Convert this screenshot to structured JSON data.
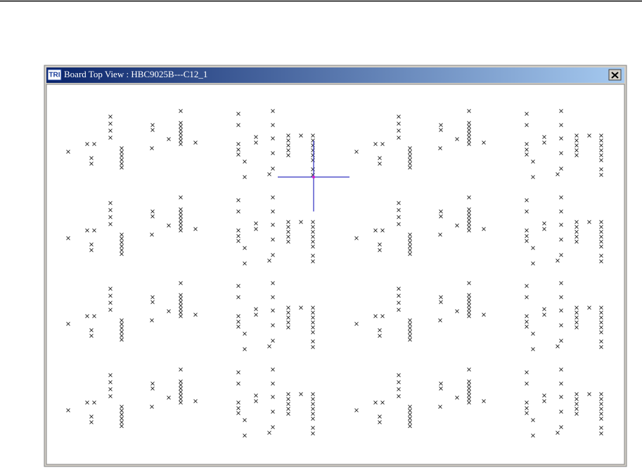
{
  "window": {
    "icon_text": "TRI",
    "title": "Board Top View : HBC9025B---C12_1"
  }
}
